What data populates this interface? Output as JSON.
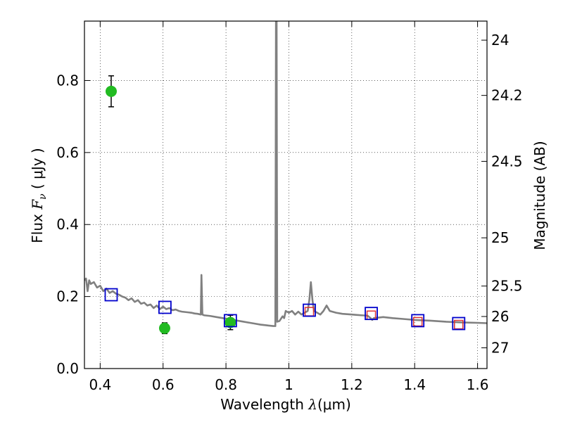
{
  "chart_data": {
    "type": "scatter",
    "xlabel_text": "Wavelength  ",
    "xlabel_symbol": "λ",
    "xlabel_unit": "(μm)",
    "ylabel_text": "Flux  ",
    "ylabel_symbol": "F",
    "ylabel_subscript": "ν",
    "ylabel_unit": "  ( μJy )",
    "y2label": "Magnitude (AB)",
    "xlim": [
      0.35,
      1.63
    ],
    "ylim": [
      0.0,
      0.965
    ],
    "x_ticks": [
      {
        "value": 0.4,
        "label": "0.4"
      },
      {
        "value": 0.6,
        "label": "0.6"
      },
      {
        "value": 0.8,
        "label": "0.8"
      },
      {
        "value": 1.0,
        "label": "1"
      },
      {
        "value": 1.2,
        "label": "1.2"
      },
      {
        "value": 1.4,
        "label": "1.4"
      },
      {
        "value": 1.6,
        "label": "1.6"
      }
    ],
    "y_ticks": [
      {
        "value": 0.0,
        "label": "0.0"
      },
      {
        "value": 0.2,
        "label": "0.2"
      },
      {
        "value": 0.4,
        "label": "0.4"
      },
      {
        "value": 0.6,
        "label": "0.6"
      },
      {
        "value": 0.8,
        "label": "0.8"
      }
    ],
    "y2_ticks": [
      {
        "mag": 24,
        "label": "24"
      },
      {
        "mag": 24.2,
        "label": "24.2"
      },
      {
        "mag": 24.5,
        "label": "24.5"
      },
      {
        "mag": 25,
        "label": "25"
      },
      {
        "mag": 25.5,
        "label": "25.5"
      },
      {
        "mag": 26,
        "label": "26"
      },
      {
        "mag": 27,
        "label": "27"
      }
    ],
    "grid": true,
    "colors": {
      "spectrum": "#808080",
      "observed": "#22bb22",
      "model_box": "#0000cc",
      "model_inner": "#dd3333",
      "errorbar": "#000000"
    },
    "series": [
      {
        "kind": "line",
        "points": [
          [
            0.35,
            0.245
          ],
          [
            0.355,
            0.25
          ],
          [
            0.36,
            0.215
          ],
          [
            0.365,
            0.245
          ],
          [
            0.37,
            0.235
          ],
          [
            0.38,
            0.24
          ],
          [
            0.39,
            0.225
          ],
          [
            0.4,
            0.23
          ],
          [
            0.41,
            0.215
          ],
          [
            0.42,
            0.222
          ],
          [
            0.43,
            0.21
          ],
          [
            0.44,
            0.215
          ],
          [
            0.45,
            0.208
          ],
          [
            0.46,
            0.205
          ],
          [
            0.47,
            0.2
          ],
          [
            0.48,
            0.197
          ],
          [
            0.49,
            0.19
          ],
          [
            0.5,
            0.195
          ],
          [
            0.51,
            0.185
          ],
          [
            0.52,
            0.19
          ],
          [
            0.53,
            0.18
          ],
          [
            0.54,
            0.183
          ],
          [
            0.55,
            0.175
          ],
          [
            0.56,
            0.178
          ],
          [
            0.57,
            0.168
          ],
          [
            0.58,
            0.175
          ],
          [
            0.59,
            0.165
          ],
          [
            0.6,
            0.172
          ],
          [
            0.61,
            0.165
          ],
          [
            0.62,
            0.168
          ],
          [
            0.63,
            0.162
          ],
          [
            0.64,
            0.164
          ],
          [
            0.65,
            0.16
          ],
          [
            0.66,
            0.158
          ],
          [
            0.67,
            0.157
          ],
          [
            0.68,
            0.156
          ],
          [
            0.69,
            0.155
          ],
          [
            0.7,
            0.153
          ],
          [
            0.71,
            0.152
          ],
          [
            0.715,
            0.151
          ],
          [
            0.72,
            0.15
          ],
          [
            0.722,
            0.26
          ],
          [
            0.725,
            0.15
          ],
          [
            0.73,
            0.148
          ],
          [
            0.75,
            0.146
          ],
          [
            0.77,
            0.143
          ],
          [
            0.79,
            0.14
          ],
          [
            0.81,
            0.137
          ],
          [
            0.83,
            0.134
          ],
          [
            0.85,
            0.131
          ],
          [
            0.87,
            0.128
          ],
          [
            0.89,
            0.125
          ],
          [
            0.91,
            0.122
          ],
          [
            0.93,
            0.12
          ],
          [
            0.95,
            0.118
          ],
          [
            0.957,
            0.118
          ],
          [
            0.958,
            0.5
          ],
          [
            0.959,
            0.965
          ],
          [
            0.961,
            0.965
          ],
          [
            0.962,
            0.5
          ],
          [
            0.963,
            0.13
          ],
          [
            0.97,
            0.132
          ],
          [
            0.98,
            0.145
          ],
          [
            0.985,
            0.14
          ],
          [
            0.99,
            0.16
          ],
          [
            1.0,
            0.155
          ],
          [
            1.01,
            0.16
          ],
          [
            1.02,
            0.15
          ],
          [
            1.03,
            0.158
          ],
          [
            1.04,
            0.15
          ],
          [
            1.05,
            0.155
          ],
          [
            1.06,
            0.16
          ],
          [
            1.065,
            0.19
          ],
          [
            1.07,
            0.24
          ],
          [
            1.075,
            0.19
          ],
          [
            1.08,
            0.16
          ],
          [
            1.09,
            0.155
          ],
          [
            1.1,
            0.15
          ],
          [
            1.11,
            0.16
          ],
          [
            1.12,
            0.175
          ],
          [
            1.13,
            0.16
          ],
          [
            1.15,
            0.155
          ],
          [
            1.17,
            0.152
          ],
          [
            1.2,
            0.15
          ],
          [
            1.23,
            0.148
          ],
          [
            1.25,
            0.147
          ],
          [
            1.26,
            0.14
          ],
          [
            1.265,
            0.135
          ],
          [
            1.27,
            0.14
          ],
          [
            1.3,
            0.143
          ],
          [
            1.33,
            0.14
          ],
          [
            1.36,
            0.138
          ],
          [
            1.4,
            0.135
          ],
          [
            1.45,
            0.133
          ],
          [
            1.5,
            0.13
          ],
          [
            1.55,
            0.128
          ],
          [
            1.6,
            0.127
          ],
          [
            1.63,
            0.126
          ]
        ]
      },
      {
        "kind": "observed",
        "points": [
          {
            "x": 0.435,
            "y": 0.77,
            "err": 0.043
          },
          {
            "x": 0.605,
            "y": 0.112,
            "err": 0.015
          },
          {
            "x": 0.814,
            "y": 0.128,
            "err": 0.02
          }
        ]
      },
      {
        "kind": "model_box",
        "points": [
          {
            "x": 0.435,
            "y": 0.205
          },
          {
            "x": 0.606,
            "y": 0.17
          },
          {
            "x": 0.814,
            "y": 0.133
          },
          {
            "x": 1.065,
            "y": 0.162
          },
          {
            "x": 1.262,
            "y": 0.153
          },
          {
            "x": 1.41,
            "y": 0.133
          },
          {
            "x": 1.54,
            "y": 0.125
          }
        ]
      },
      {
        "kind": "model_inner",
        "points": [
          {
            "x": 1.065,
            "y": 0.158
          },
          {
            "x": 1.262,
            "y": 0.148
          },
          {
            "x": 1.41,
            "y": 0.13
          },
          {
            "x": 1.54,
            "y": 0.122
          }
        ]
      }
    ]
  }
}
